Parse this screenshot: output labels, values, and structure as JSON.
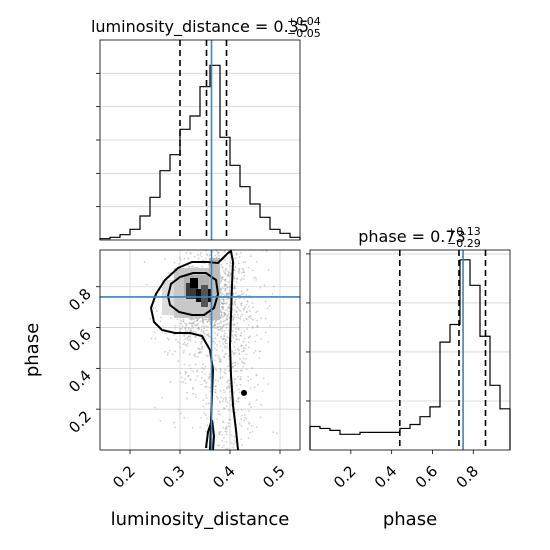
{
  "chart_data": [
    {
      "type": "histogram",
      "panel": "luminosity_distance-marginal",
      "title_parameter": "luminosity_distance",
      "title_value": "0.35",
      "title_err_plus": "+0.04",
      "title_err_minus": "−0.05",
      "xlim": [
        0.14,
        0.54
      ],
      "bin_edges": [
        0.14,
        0.16,
        0.18,
        0.2,
        0.22,
        0.24,
        0.26,
        0.28,
        0.3,
        0.32,
        0.34,
        0.36,
        0.38,
        0.4,
        0.42,
        0.44,
        0.46,
        0.48,
        0.5,
        0.52,
        0.54
      ],
      "counts": [
        1,
        2,
        4,
        8,
        18,
        32,
        52,
        64,
        83,
        93,
        115,
        131,
        77,
        56,
        40,
        27,
        17,
        8,
        5,
        2
      ],
      "ylim": [
        0,
        150
      ],
      "quantiles": [
        0.3,
        0.353,
        0.393
      ],
      "truth": 0.363,
      "grid": true
    },
    {
      "type": "histogram",
      "panel": "phase-marginal",
      "title_parameter": "phase",
      "title_value": "0.73",
      "title_err_plus": "+0.13",
      "title_err_minus": "−0.29",
      "xlim": [
        0.0,
        0.98
      ],
      "bin_edges": [
        0.0,
        0.049,
        0.098,
        0.147,
        0.196,
        0.245,
        0.294,
        0.343,
        0.392,
        0.441,
        0.49,
        0.539,
        0.588,
        0.637,
        0.686,
        0.735,
        0.784,
        0.833,
        0.882,
        0.931,
        0.98
      ],
      "counts": [
        12,
        11,
        10,
        8,
        8,
        9,
        9,
        9,
        9,
        11,
        13,
        17,
        22,
        55,
        64,
        97,
        84,
        58,
        33,
        21
      ],
      "ylim": [
        0,
        102
      ],
      "quantiles": [
        0.44,
        0.73,
        0.86
      ],
      "truth": 0.75,
      "grid": true
    },
    {
      "type": "contour",
      "panel": "luminosity_distance-vs-phase",
      "xlim": [
        0.14,
        0.54
      ],
      "ylim": [
        0.0,
        0.98
      ],
      "truth": {
        "x": 0.363,
        "y": 0.75
      },
      "peak": {
        "x": 0.355,
        "y": 0.74
      },
      "isolated_point": {
        "x": 0.428,
        "y": 0.28
      },
      "contour_levels": 2,
      "scatter_points": 1600,
      "grid": true
    }
  ],
  "axes": {
    "x_ticks_left": [
      "0.2",
      "0.3",
      "0.4",
      "0.5"
    ],
    "x_ticks_left_values": [
      0.2,
      0.3,
      0.4,
      0.5
    ],
    "x_ticks_right": [
      "0.2",
      "0.4",
      "0.6",
      "0.8"
    ],
    "x_ticks_right_values": [
      0.2,
      0.4,
      0.6,
      0.8
    ],
    "y_ticks": [
      "0.2",
      "0.4",
      "0.6",
      "0.8"
    ],
    "y_ticks_values": [
      0.2,
      0.4,
      0.6,
      0.8
    ],
    "xlabel_left": "luminosity_distance",
    "xlabel_right": "phase",
    "ylabel": "phase"
  },
  "colors": {
    "truth": "#4682b4",
    "line": "#000000",
    "grid": "#d3d3d3",
    "scatter": "#999999"
  }
}
